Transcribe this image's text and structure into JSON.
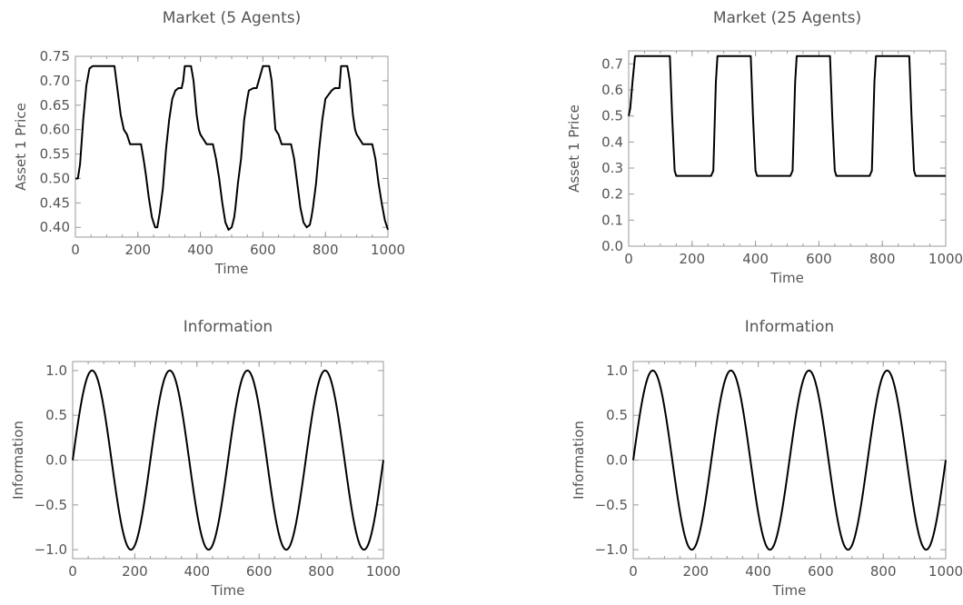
{
  "chart_data": [
    {
      "type": "line",
      "title": "Market (5 Agents)",
      "xlabel": "Time",
      "ylabel": "Asset 1 Price",
      "xlim": [
        0,
        1000
      ],
      "ylim": [
        0.38,
        0.75
      ],
      "xticks": [
        "0",
        "200",
        "400",
        "600",
        "800",
        "1000"
      ],
      "yticks": [
        "0.40",
        "0.45",
        "0.50",
        "0.55",
        "0.60",
        "0.65",
        "0.70",
        "0.75"
      ],
      "grid": false,
      "series": [
        {
          "x": [
            0,
            8,
            15,
            25,
            35,
            45,
            55,
            70,
            125,
            135,
            145,
            155,
            165,
            175,
            185,
            200,
            210,
            218,
            225,
            235,
            245,
            255,
            262,
            270,
            280,
            290,
            300,
            310,
            320,
            330,
            340,
            345,
            350,
            370,
            378,
            388,
            395,
            400,
            420,
            428,
            440,
            450,
            460,
            470,
            480,
            490,
            500,
            508,
            512,
            520,
            530,
            540,
            550,
            555,
            570,
            580,
            600,
            620,
            628,
            640,
            650,
            660,
            670,
            680,
            690,
            700,
            710,
            720,
            730,
            740,
            750,
            755,
            760,
            770,
            780,
            790,
            800,
            820,
            830,
            845,
            850,
            870,
            878,
            888,
            895,
            900,
            920,
            928,
            940,
            950,
            960,
            970,
            980,
            990,
            1000
          ],
          "y": [
            0.5,
            0.5,
            0.53,
            0.62,
            0.69,
            0.725,
            0.73,
            0.73,
            0.73,
            0.68,
            0.63,
            0.6,
            0.59,
            0.57,
            0.57,
            0.57,
            0.57,
            0.54,
            0.51,
            0.46,
            0.42,
            0.4,
            0.4,
            0.43,
            0.48,
            0.56,
            0.62,
            0.663,
            0.68,
            0.685,
            0.685,
            0.7,
            0.73,
            0.73,
            0.7,
            0.63,
            0.6,
            0.59,
            0.57,
            0.57,
            0.57,
            0.54,
            0.5,
            0.45,
            0.41,
            0.395,
            0.4,
            0.42,
            0.44,
            0.49,
            0.54,
            0.62,
            0.663,
            0.68,
            0.685,
            0.685,
            0.73,
            0.73,
            0.7,
            0.6,
            0.59,
            0.57,
            0.57,
            0.57,
            0.57,
            0.54,
            0.49,
            0.44,
            0.41,
            0.4,
            0.405,
            0.42,
            0.44,
            0.49,
            0.56,
            0.62,
            0.663,
            0.68,
            0.685,
            0.685,
            0.73,
            0.73,
            0.7,
            0.63,
            0.6,
            0.59,
            0.57,
            0.57,
            0.57,
            0.57,
            0.54,
            0.49,
            0.45,
            0.415,
            0.395
          ]
        }
      ]
    },
    {
      "type": "line",
      "title": "Market (25 Agents)",
      "xlabel": "Time",
      "ylabel": "Asset 1 Price",
      "xlim": [
        0,
        1000
      ],
      "ylim": [
        0.0,
        0.75
      ],
      "xticks": [
        "0",
        "200",
        "400",
        "600",
        "800",
        "1000"
      ],
      "yticks": [
        "0.0",
        "0.1",
        "0.2",
        "0.3",
        "0.4",
        "0.5",
        "0.6",
        "0.7"
      ],
      "grid": false,
      "series": [
        {
          "x": [
            0,
            5,
            12,
            20,
            130,
            137,
            145,
            150,
            260,
            267,
            275,
            280,
            385,
            392,
            400,
            405,
            510,
            517,
            525,
            530,
            635,
            642,
            650,
            655,
            760,
            767,
            775,
            780,
            885,
            892,
            900,
            905,
            1000
          ],
          "y": [
            0.5,
            0.53,
            0.63,
            0.73,
            0.73,
            0.5,
            0.29,
            0.27,
            0.27,
            0.29,
            0.63,
            0.73,
            0.73,
            0.5,
            0.29,
            0.27,
            0.27,
            0.29,
            0.63,
            0.73,
            0.73,
            0.5,
            0.29,
            0.27,
            0.27,
            0.29,
            0.63,
            0.73,
            0.73,
            0.5,
            0.29,
            0.27,
            0.27
          ]
        }
      ]
    },
    {
      "type": "line",
      "title": "Information",
      "xlabel": "Time",
      "ylabel": "Information",
      "xlim": [
        0,
        1000
      ],
      "ylim": [
        -1.1,
        1.1
      ],
      "xticks": [
        "0",
        "200",
        "400",
        "600",
        "800",
        "1000"
      ],
      "yticks": [
        "−1.0",
        "−0.5",
        "0.0",
        "0.5",
        "1.0"
      ],
      "grid": false,
      "zero_line": true,
      "function": "sin(2*pi*t/250)",
      "series": [
        {
          "x": [
            0,
            31.25,
            62.5,
            93.75,
            125,
            156.25,
            187.5,
            218.75,
            250,
            281.25,
            312.5,
            343.75,
            375,
            406.25,
            437.5,
            468.75,
            500,
            531.25,
            562.5,
            593.75,
            625,
            656.25,
            687.5,
            718.75,
            750,
            781.25,
            812.5,
            843.75,
            875,
            906.25,
            937.5,
            968.75,
            1000
          ],
          "y": [
            0,
            0.707,
            1,
            0.707,
            0,
            -0.707,
            -1,
            -0.707,
            0,
            0.707,
            1,
            0.707,
            0,
            -0.707,
            -1,
            -0.707,
            0,
            0.707,
            1,
            0.707,
            0,
            -0.707,
            -1,
            -0.707,
            0,
            0.707,
            1,
            0.707,
            0,
            -0.707,
            -1,
            -0.707,
            0
          ]
        }
      ]
    },
    {
      "type": "line",
      "title": "Information",
      "xlabel": "Time",
      "ylabel": "Information",
      "xlim": [
        0,
        1000
      ],
      "ylim": [
        -1.1,
        1.1
      ],
      "xticks": [
        "0",
        "200",
        "400",
        "600",
        "800",
        "1000"
      ],
      "yticks": [
        "−1.0",
        "−0.5",
        "0.0",
        "0.5",
        "1.0"
      ],
      "grid": false,
      "zero_line": true,
      "function": "sin(2*pi*t/250)",
      "series": [
        {
          "x": [
            0,
            31.25,
            62.5,
            93.75,
            125,
            156.25,
            187.5,
            218.75,
            250,
            281.25,
            312.5,
            343.75,
            375,
            406.25,
            437.5,
            468.75,
            500,
            531.25,
            562.5,
            593.75,
            625,
            656.25,
            687.5,
            718.75,
            750,
            781.25,
            812.5,
            843.75,
            875,
            906.25,
            937.5,
            968.75,
            1000
          ],
          "y": [
            0,
            0.707,
            1,
            0.707,
            0,
            -0.707,
            -1,
            -0.707,
            0,
            0.707,
            1,
            0.707,
            0,
            -0.707,
            -1,
            -0.707,
            0,
            0.707,
            1,
            0.707,
            0,
            -0.707,
            -1,
            -0.707,
            0,
            0.707,
            1,
            0.707,
            0,
            -0.707,
            -1,
            -0.707,
            0
          ]
        }
      ]
    }
  ],
  "colors": {
    "line": "#000000",
    "frame": "#9a9a9a",
    "text": "#555555",
    "zero_line": "#cccccc"
  }
}
